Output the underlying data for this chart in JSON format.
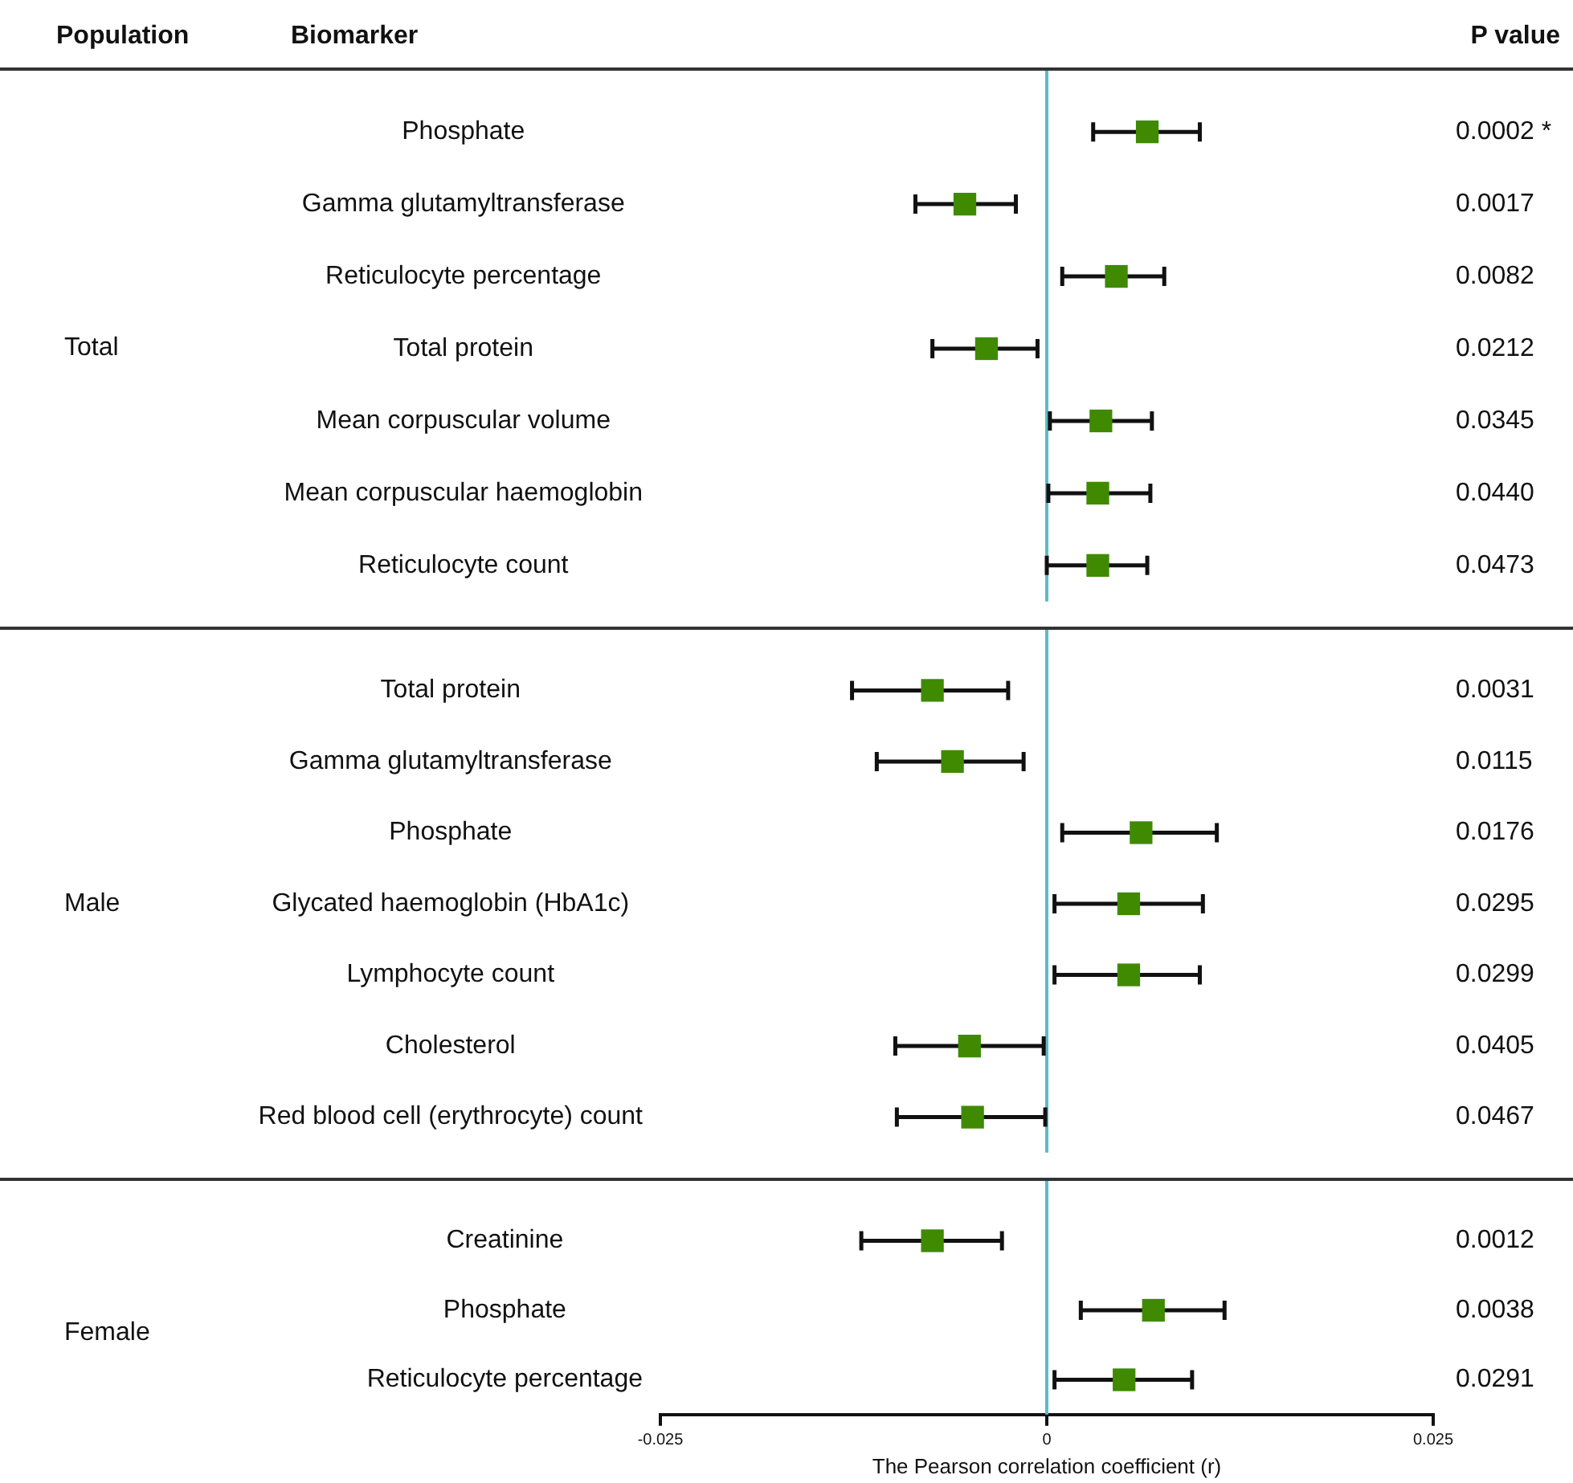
{
  "chart_data": [
    {
      "type": "scatter",
      "orientation": "horizontal",
      "ylabel": "Total",
      "annotations": [
        "Population",
        "Biomarker",
        "P value"
      ],
      "categories": [
        "Phosphate",
        "Gamma glutamyltransferase",
        "Reticulocyte percentage",
        "Total protein",
        "Mean corpuscular volume",
        "Mean corpuscular haemoglobin",
        "Reticulocyte count"
      ],
      "y2_categories": [
        "0.0002 *",
        "0.0017",
        "0.0082",
        "0.0212",
        "0.0345",
        "0.0440",
        "0.0473"
      ],
      "series": [
        {
          "color": "#3f8a00",
          "values": [
            0.0065,
            -0.0053,
            0.0045,
            -0.0039,
            0.0035,
            0.0033,
            0.0033
          ],
          "errors": [
            [
              0.003,
              0.0099
            ],
            [
              -0.0085,
              -0.002
            ],
            [
              0.001,
              0.0076
            ],
            [
              -0.0074,
              -0.0006
            ],
            [
              0.0002,
              0.0068
            ],
            [
              0.0001,
              0.0067
            ],
            [
              0.0,
              0.0065
            ]
          ]
        }
      ],
      "xlim": [
        -0.025,
        0.025
      ],
      "tick_labels": "y",
      "marker": "square",
      "ref_lines": [
        {
          "axis": "x",
          "value": 0,
          "color": "#5bbcc8"
        }
      ]
    },
    {
      "type": "scatter",
      "orientation": "horizontal",
      "ylabel": "Male",
      "categories": [
        "Total protein",
        "Gamma glutamyltransferase",
        "Phosphate",
        "Glycated haemoglobin (HbA1c)",
        "Lymphocyte count",
        "Cholesterol",
        "Red blood cell (erythrocyte) count"
      ],
      "y2_categories": [
        "0.0031",
        "0.0115",
        "0.0176",
        "0.0295",
        "0.0299",
        "0.0405",
        "0.0467"
      ],
      "series": [
        {
          "color": "#3f8a00",
          "values": [
            -0.0074,
            -0.0061,
            0.0061,
            0.0053,
            0.0053,
            -0.005,
            -0.0048
          ],
          "errors": [
            [
              -0.0126,
              -0.0025
            ],
            [
              -0.011,
              -0.0015
            ],
            [
              0.001,
              0.011
            ],
            [
              0.0005,
              0.0101
            ],
            [
              0.0005,
              0.0099
            ],
            [
              -0.0098,
              -0.0002
            ],
            [
              -0.0097,
              -0.0001
            ]
          ]
        }
      ],
      "xlim": [
        -0.025,
        0.025
      ],
      "tick_labels": "y",
      "marker": "square",
      "ref_lines": [
        {
          "axis": "x",
          "value": 0,
          "color": "#5bbcc8"
        }
      ]
    },
    {
      "type": "scatter",
      "orientation": "horizontal",
      "ylabel": "Female",
      "xlabel": "The Pearson correlation coefficient (r)",
      "categories": [
        "Creatinine",
        "Phosphate",
        "Reticulocyte percentage"
      ],
      "y2_categories": [
        "0.0012",
        "0.0038",
        "0.0291"
      ],
      "series": [
        {
          "color": "#3f8a00",
          "values": [
            -0.0074,
            0.0069,
            0.005
          ],
          "errors": [
            [
              -0.012,
              -0.0029
            ],
            [
              0.0022,
              0.0115
            ],
            [
              0.0005,
              0.0094
            ]
          ]
        }
      ],
      "xlim": [
        -0.025,
        0.025
      ],
      "xticks": [
        -0.025,
        0,
        0.025
      ],
      "marker": "square",
      "ref_lines": [
        {
          "axis": "x",
          "value": 0,
          "color": "#5bbcc8"
        }
      ]
    }
  ]
}
